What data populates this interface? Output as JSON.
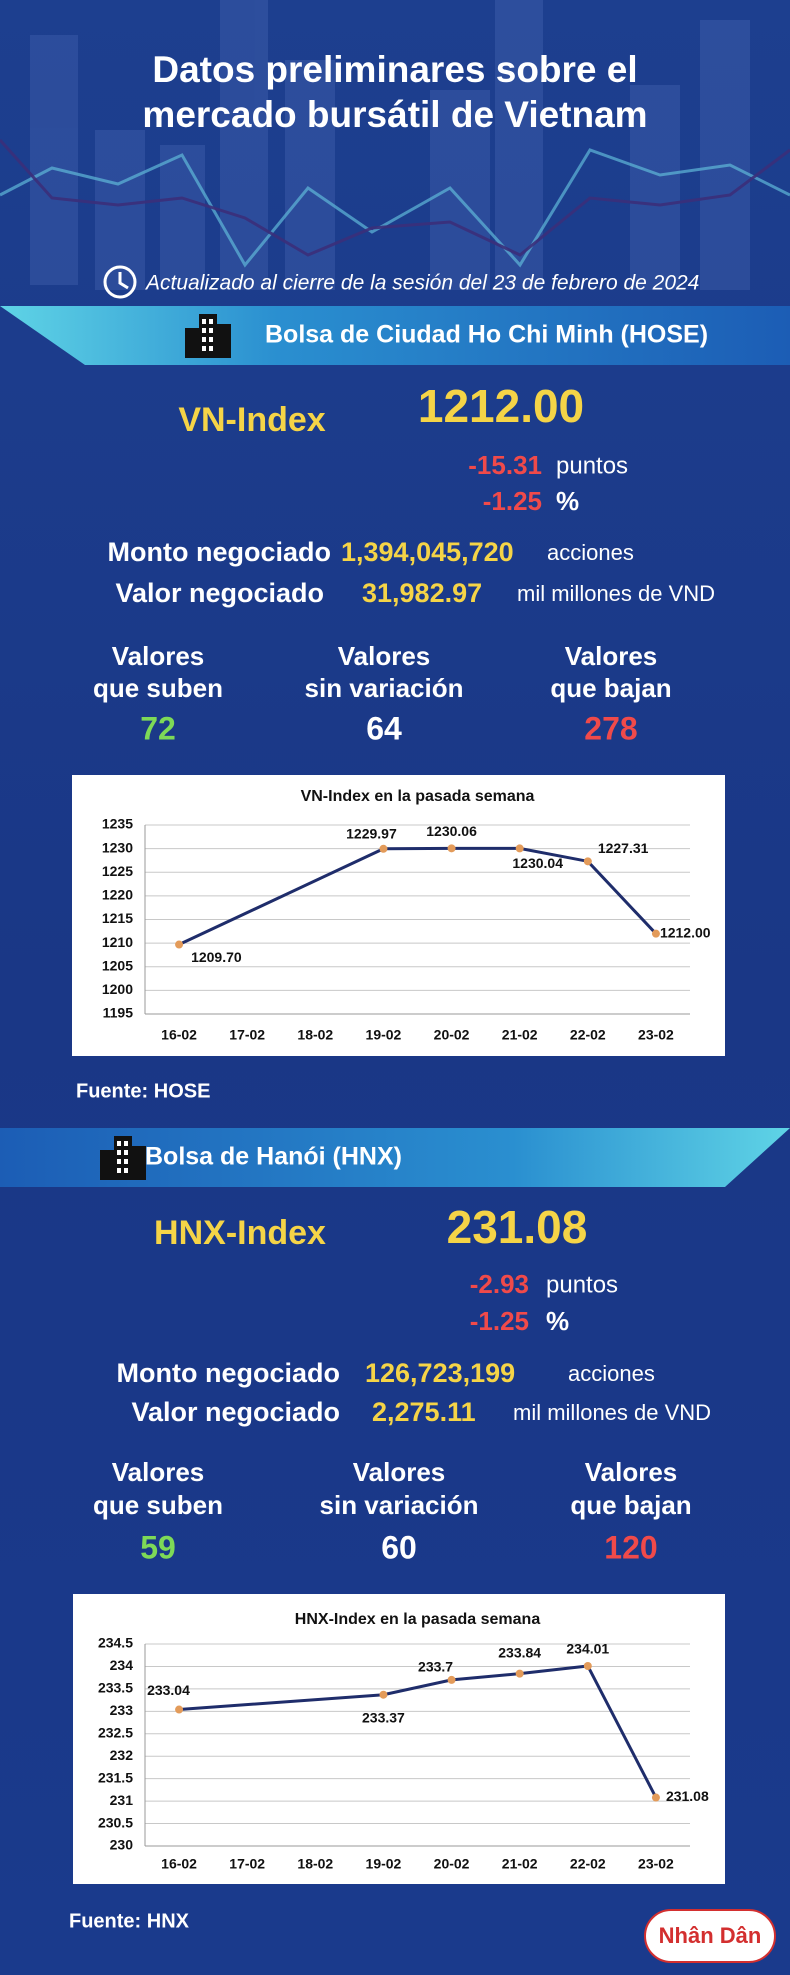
{
  "header": {
    "title_lines": [
      "Datos preliminares sobre el",
      "mercado bursátil de Vietnam"
    ],
    "updated": "Actualizado al cierre de la sesión del 23 de febrero de 2024"
  },
  "exchanges": [
    {
      "banner": "Bolsa de Ciudad Ho Chi Minh (HOSE)",
      "index_name": "VN-Index",
      "index_value": "1212.00",
      "change_points": "-15.31",
      "points_unit": "puntos",
      "change_percent": "-1.25",
      "percent_unit": "%",
      "volume_label": "Monto negociado",
      "volume": "1,394,045,720",
      "volume_unit": "acciones",
      "value_label": "Valor negociado",
      "value": "31,982.97",
      "value_unit": "mil millones de VND",
      "stats": [
        {
          "label": [
            "Valores",
            "que suben"
          ],
          "count": 72,
          "color": "#7ed957"
        },
        {
          "label": [
            "Valores",
            "sin variación"
          ],
          "count": 64,
          "color": "#ffffff"
        },
        {
          "label": [
            "Valores",
            "que bajan"
          ],
          "count": 278,
          "color": "#f04a4a"
        }
      ],
      "source": "Fuente: HOSE"
    },
    {
      "banner": "Bolsa de Hanói (HNX)",
      "index_name": "HNX-Index",
      "index_value": "231.08",
      "change_points": "-2.93",
      "points_unit": "puntos",
      "change_percent": "-1.25",
      "percent_unit": "%",
      "volume_label": "Monto negociado",
      "volume": "126,723,199",
      "volume_unit": "acciones",
      "value_label": "Valor negociado",
      "value": "2,275.11",
      "value_unit": "mil millones de VND",
      "stats": [
        {
          "label": [
            "Valores",
            "que suben"
          ],
          "count": 59,
          "color": "#7ed957"
        },
        {
          "label": [
            "Valores",
            "sin variación"
          ],
          "count": 60,
          "color": "#ffffff"
        },
        {
          "label": [
            "Valores",
            "que bajan"
          ],
          "count": 120,
          "color": "#f04a4a"
        }
      ],
      "source": "Fuente: HNX"
    }
  ],
  "chart_data": [
    {
      "type": "line",
      "title": "VN-Index en la pasada semana",
      "categories": [
        "16-02",
        "17-02",
        "18-02",
        "19-02",
        "20-02",
        "21-02",
        "22-02",
        "23-02"
      ],
      "x": [
        "16-02",
        "19-02",
        "20-02",
        "21-02",
        "22-02",
        "23-02"
      ],
      "values": [
        1209.7,
        1229.97,
        1230.06,
        1230.04,
        1227.31,
        1212.0
      ],
      "value_labels": [
        "1209.70",
        "1229.97",
        "1230.06",
        "1230.04",
        "1227.31",
        "1212.00"
      ],
      "color": "#1f2d6b",
      "marker_color": "#e39b5a",
      "ylim": [
        1195,
        1235
      ],
      "yticks": [
        1195,
        1200,
        1205,
        1210,
        1215,
        1220,
        1225,
        1230,
        1235
      ],
      "grid": true
    },
    {
      "type": "line",
      "title": "HNX-Index en la pasada semana",
      "categories": [
        "16-02",
        "17-02",
        "18-02",
        "19-02",
        "20-02",
        "21-02",
        "22-02",
        "23-02"
      ],
      "x": [
        "16-02",
        "19-02",
        "20-02",
        "21-02",
        "22-02",
        "23-02"
      ],
      "values": [
        233.04,
        233.37,
        233.7,
        233.84,
        234.01,
        231.08
      ],
      "color": "#1f2d6b",
      "marker_color": "#e39b5a",
      "ylim": [
        230,
        234.5
      ],
      "yticks": [
        230,
        230.5,
        231,
        231.5,
        232,
        232.5,
        233,
        233.5,
        234,
        234.5
      ],
      "grid": true
    }
  ],
  "logo": {
    "text": "Nhân Dân"
  }
}
